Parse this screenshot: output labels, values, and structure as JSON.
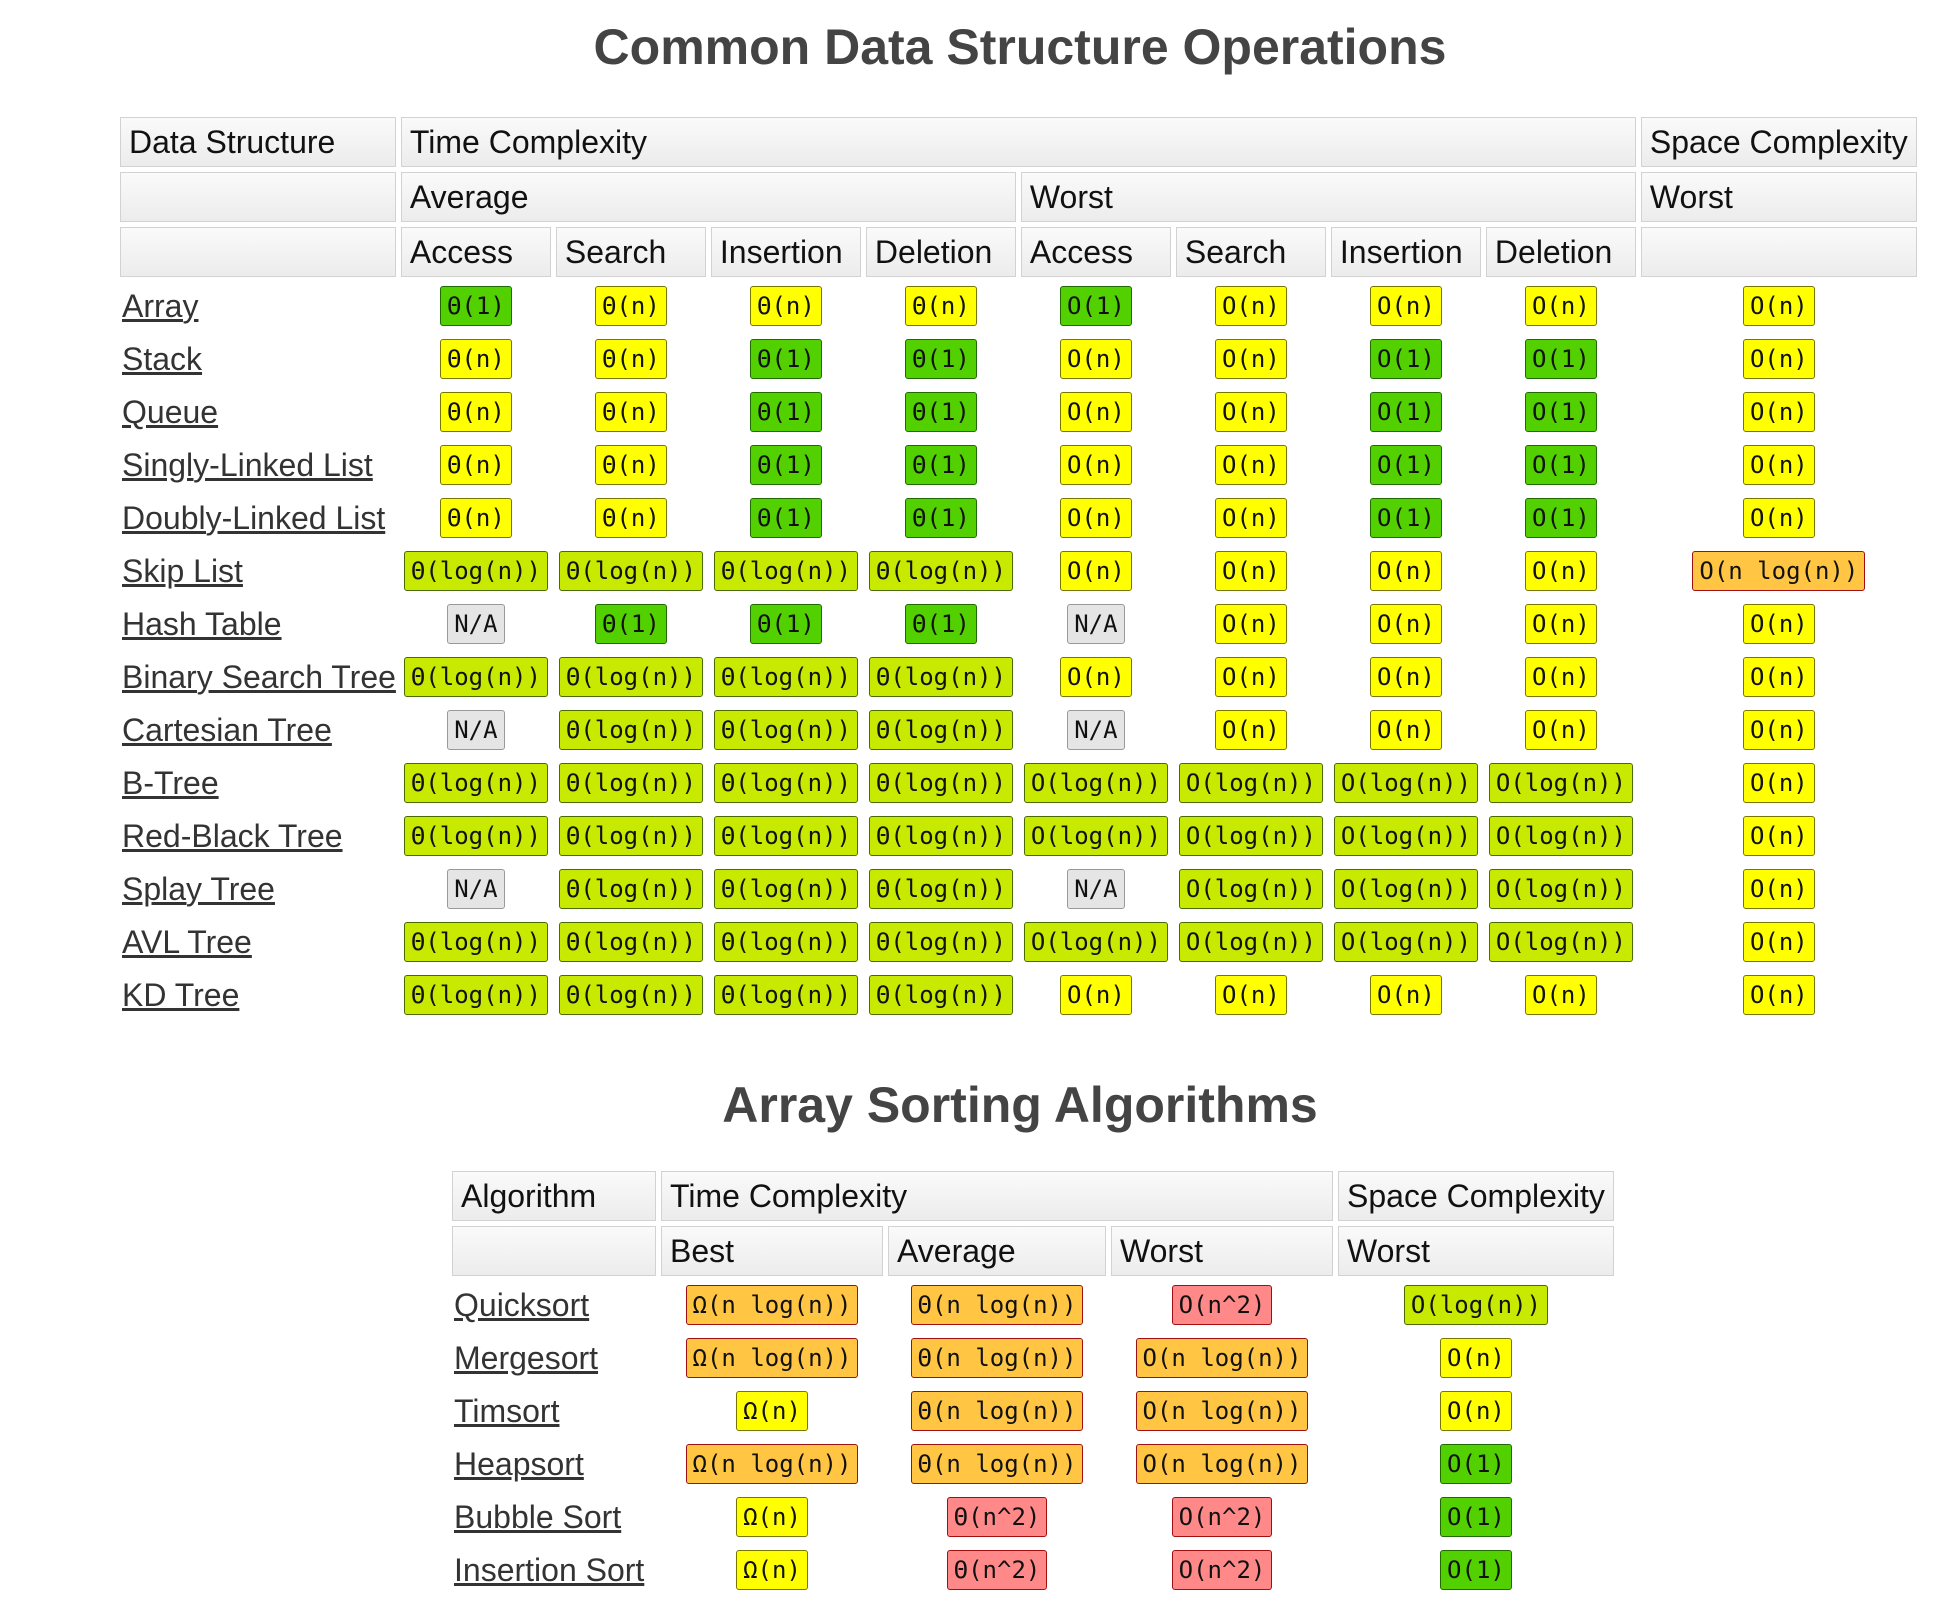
{
  "titles": {
    "ops": "Common Data Structure Operations",
    "sort": "Array Sorting Algorithms"
  },
  "ds_headers": {
    "data_structure": "Data Structure",
    "time_complexity": "Time Complexity",
    "space_complexity": "Space Complexity",
    "average": "Average",
    "worst": "Worst",
    "space_worst": "Worst",
    "ops": [
      "Access",
      "Search",
      "Insertion",
      "Deletion",
      "Access",
      "Search",
      "Insertion",
      "Deletion"
    ]
  },
  "ds_rows": [
    {
      "name": "Array",
      "cells": [
        [
          "Θ(1)",
          "green"
        ],
        [
          "Θ(n)",
          "yellow"
        ],
        [
          "Θ(n)",
          "yellow"
        ],
        [
          "Θ(n)",
          "yellow"
        ],
        [
          "O(1)",
          "green"
        ],
        [
          "O(n)",
          "yellow"
        ],
        [
          "O(n)",
          "yellow"
        ],
        [
          "O(n)",
          "yellow"
        ],
        [
          "O(n)",
          "yellow"
        ]
      ]
    },
    {
      "name": "Stack",
      "cells": [
        [
          "Θ(n)",
          "yellow"
        ],
        [
          "Θ(n)",
          "yellow"
        ],
        [
          "Θ(1)",
          "green"
        ],
        [
          "Θ(1)",
          "green"
        ],
        [
          "O(n)",
          "yellow"
        ],
        [
          "O(n)",
          "yellow"
        ],
        [
          "O(1)",
          "green"
        ],
        [
          "O(1)",
          "green"
        ],
        [
          "O(n)",
          "yellow"
        ]
      ]
    },
    {
      "name": "Queue",
      "cells": [
        [
          "Θ(n)",
          "yellow"
        ],
        [
          "Θ(n)",
          "yellow"
        ],
        [
          "Θ(1)",
          "green"
        ],
        [
          "Θ(1)",
          "green"
        ],
        [
          "O(n)",
          "yellow"
        ],
        [
          "O(n)",
          "yellow"
        ],
        [
          "O(1)",
          "green"
        ],
        [
          "O(1)",
          "green"
        ],
        [
          "O(n)",
          "yellow"
        ]
      ]
    },
    {
      "name": "Singly-Linked List",
      "cells": [
        [
          "Θ(n)",
          "yellow"
        ],
        [
          "Θ(n)",
          "yellow"
        ],
        [
          "Θ(1)",
          "green"
        ],
        [
          "Θ(1)",
          "green"
        ],
        [
          "O(n)",
          "yellow"
        ],
        [
          "O(n)",
          "yellow"
        ],
        [
          "O(1)",
          "green"
        ],
        [
          "O(1)",
          "green"
        ],
        [
          "O(n)",
          "yellow"
        ]
      ]
    },
    {
      "name": "Doubly-Linked List",
      "cells": [
        [
          "Θ(n)",
          "yellow"
        ],
        [
          "Θ(n)",
          "yellow"
        ],
        [
          "Θ(1)",
          "green"
        ],
        [
          "Θ(1)",
          "green"
        ],
        [
          "O(n)",
          "yellow"
        ],
        [
          "O(n)",
          "yellow"
        ],
        [
          "O(1)",
          "green"
        ],
        [
          "O(1)",
          "green"
        ],
        [
          "O(n)",
          "yellow"
        ]
      ]
    },
    {
      "name": "Skip List",
      "cells": [
        [
          "Θ(log(n))",
          "yellow-green"
        ],
        [
          "Θ(log(n))",
          "yellow-green"
        ],
        [
          "Θ(log(n))",
          "yellow-green"
        ],
        [
          "Θ(log(n))",
          "yellow-green"
        ],
        [
          "O(n)",
          "yellow"
        ],
        [
          "O(n)",
          "yellow"
        ],
        [
          "O(n)",
          "yellow"
        ],
        [
          "O(n)",
          "yellow"
        ],
        [
          "O(n log(n))",
          "orange"
        ]
      ]
    },
    {
      "name": "Hash Table",
      "cells": [
        [
          "N/A",
          "gray"
        ],
        [
          "Θ(1)",
          "green"
        ],
        [
          "Θ(1)",
          "green"
        ],
        [
          "Θ(1)",
          "green"
        ],
        [
          "N/A",
          "gray"
        ],
        [
          "O(n)",
          "yellow"
        ],
        [
          "O(n)",
          "yellow"
        ],
        [
          "O(n)",
          "yellow"
        ],
        [
          "O(n)",
          "yellow"
        ]
      ]
    },
    {
      "name": "Binary Search Tree",
      "cells": [
        [
          "Θ(log(n))",
          "yellow-green"
        ],
        [
          "Θ(log(n))",
          "yellow-green"
        ],
        [
          "Θ(log(n))",
          "yellow-green"
        ],
        [
          "Θ(log(n))",
          "yellow-green"
        ],
        [
          "O(n)",
          "yellow"
        ],
        [
          "O(n)",
          "yellow"
        ],
        [
          "O(n)",
          "yellow"
        ],
        [
          "O(n)",
          "yellow"
        ],
        [
          "O(n)",
          "yellow"
        ]
      ]
    },
    {
      "name": "Cartesian Tree",
      "cells": [
        [
          "N/A",
          "gray"
        ],
        [
          "Θ(log(n))",
          "yellow-green"
        ],
        [
          "Θ(log(n))",
          "yellow-green"
        ],
        [
          "Θ(log(n))",
          "yellow-green"
        ],
        [
          "N/A",
          "gray"
        ],
        [
          "O(n)",
          "yellow"
        ],
        [
          "O(n)",
          "yellow"
        ],
        [
          "O(n)",
          "yellow"
        ],
        [
          "O(n)",
          "yellow"
        ]
      ]
    },
    {
      "name": "B-Tree",
      "cells": [
        [
          "Θ(log(n))",
          "yellow-green"
        ],
        [
          "Θ(log(n))",
          "yellow-green"
        ],
        [
          "Θ(log(n))",
          "yellow-green"
        ],
        [
          "Θ(log(n))",
          "yellow-green"
        ],
        [
          "O(log(n))",
          "yellow-green"
        ],
        [
          "O(log(n))",
          "yellow-green"
        ],
        [
          "O(log(n))",
          "yellow-green"
        ],
        [
          "O(log(n))",
          "yellow-green"
        ],
        [
          "O(n)",
          "yellow"
        ]
      ]
    },
    {
      "name": "Red-Black Tree",
      "cells": [
        [
          "Θ(log(n))",
          "yellow-green"
        ],
        [
          "Θ(log(n))",
          "yellow-green"
        ],
        [
          "Θ(log(n))",
          "yellow-green"
        ],
        [
          "Θ(log(n))",
          "yellow-green"
        ],
        [
          "O(log(n))",
          "yellow-green"
        ],
        [
          "O(log(n))",
          "yellow-green"
        ],
        [
          "O(log(n))",
          "yellow-green"
        ],
        [
          "O(log(n))",
          "yellow-green"
        ],
        [
          "O(n)",
          "yellow"
        ]
      ]
    },
    {
      "name": "Splay Tree",
      "cells": [
        [
          "N/A",
          "gray"
        ],
        [
          "Θ(log(n))",
          "yellow-green"
        ],
        [
          "Θ(log(n))",
          "yellow-green"
        ],
        [
          "Θ(log(n))",
          "yellow-green"
        ],
        [
          "N/A",
          "gray"
        ],
        [
          "O(log(n))",
          "yellow-green"
        ],
        [
          "O(log(n))",
          "yellow-green"
        ],
        [
          "O(log(n))",
          "yellow-green"
        ],
        [
          "O(n)",
          "yellow"
        ]
      ]
    },
    {
      "name": "AVL Tree",
      "cells": [
        [
          "Θ(log(n))",
          "yellow-green"
        ],
        [
          "Θ(log(n))",
          "yellow-green"
        ],
        [
          "Θ(log(n))",
          "yellow-green"
        ],
        [
          "Θ(log(n))",
          "yellow-green"
        ],
        [
          "O(log(n))",
          "yellow-green"
        ],
        [
          "O(log(n))",
          "yellow-green"
        ],
        [
          "O(log(n))",
          "yellow-green"
        ],
        [
          "O(log(n))",
          "yellow-green"
        ],
        [
          "O(n)",
          "yellow"
        ]
      ]
    },
    {
      "name": "KD Tree",
      "cells": [
        [
          "Θ(log(n))",
          "yellow-green"
        ],
        [
          "Θ(log(n))",
          "yellow-green"
        ],
        [
          "Θ(log(n))",
          "yellow-green"
        ],
        [
          "Θ(log(n))",
          "yellow-green"
        ],
        [
          "O(n)",
          "yellow"
        ],
        [
          "O(n)",
          "yellow"
        ],
        [
          "O(n)",
          "yellow"
        ],
        [
          "O(n)",
          "yellow"
        ],
        [
          "O(n)",
          "yellow"
        ]
      ]
    }
  ],
  "sort_headers": {
    "algorithm": "Algorithm",
    "time_complexity": "Time Complexity",
    "space_complexity": "Space Complexity",
    "best": "Best",
    "average": "Average",
    "worst": "Worst",
    "space_worst": "Worst"
  },
  "sort_rows": [
    {
      "name": "Quicksort",
      "cells": [
        [
          "Ω(n log(n))",
          "orange"
        ],
        [
          "Θ(n log(n))",
          "orange"
        ],
        [
          "O(n^2)",
          "red"
        ],
        [
          "O(log(n))",
          "yellow-green"
        ]
      ]
    },
    {
      "name": "Mergesort",
      "cells": [
        [
          "Ω(n log(n))",
          "orange"
        ],
        [
          "Θ(n log(n))",
          "orange"
        ],
        [
          "O(n log(n))",
          "orange"
        ],
        [
          "O(n)",
          "yellow"
        ]
      ]
    },
    {
      "name": "Timsort",
      "cells": [
        [
          "Ω(n)",
          "yellow"
        ],
        [
          "Θ(n log(n))",
          "orange"
        ],
        [
          "O(n log(n))",
          "orange"
        ],
        [
          "O(n)",
          "yellow"
        ]
      ]
    },
    {
      "name": "Heapsort",
      "cells": [
        [
          "Ω(n log(n))",
          "orange"
        ],
        [
          "Θ(n log(n))",
          "orange"
        ],
        [
          "O(n log(n))",
          "orange"
        ],
        [
          "O(1)",
          "green"
        ]
      ]
    },
    {
      "name": "Bubble Sort",
      "cells": [
        [
          "Ω(n)",
          "yellow"
        ],
        [
          "Θ(n^2)",
          "red"
        ],
        [
          "O(n^2)",
          "red"
        ],
        [
          "O(1)",
          "green"
        ]
      ]
    },
    {
      "name": "Insertion Sort",
      "cells": [
        [
          "Ω(n)",
          "yellow"
        ],
        [
          "Θ(n^2)",
          "red"
        ],
        [
          "O(n^2)",
          "red"
        ],
        [
          "O(1)",
          "green"
        ]
      ]
    }
  ]
}
